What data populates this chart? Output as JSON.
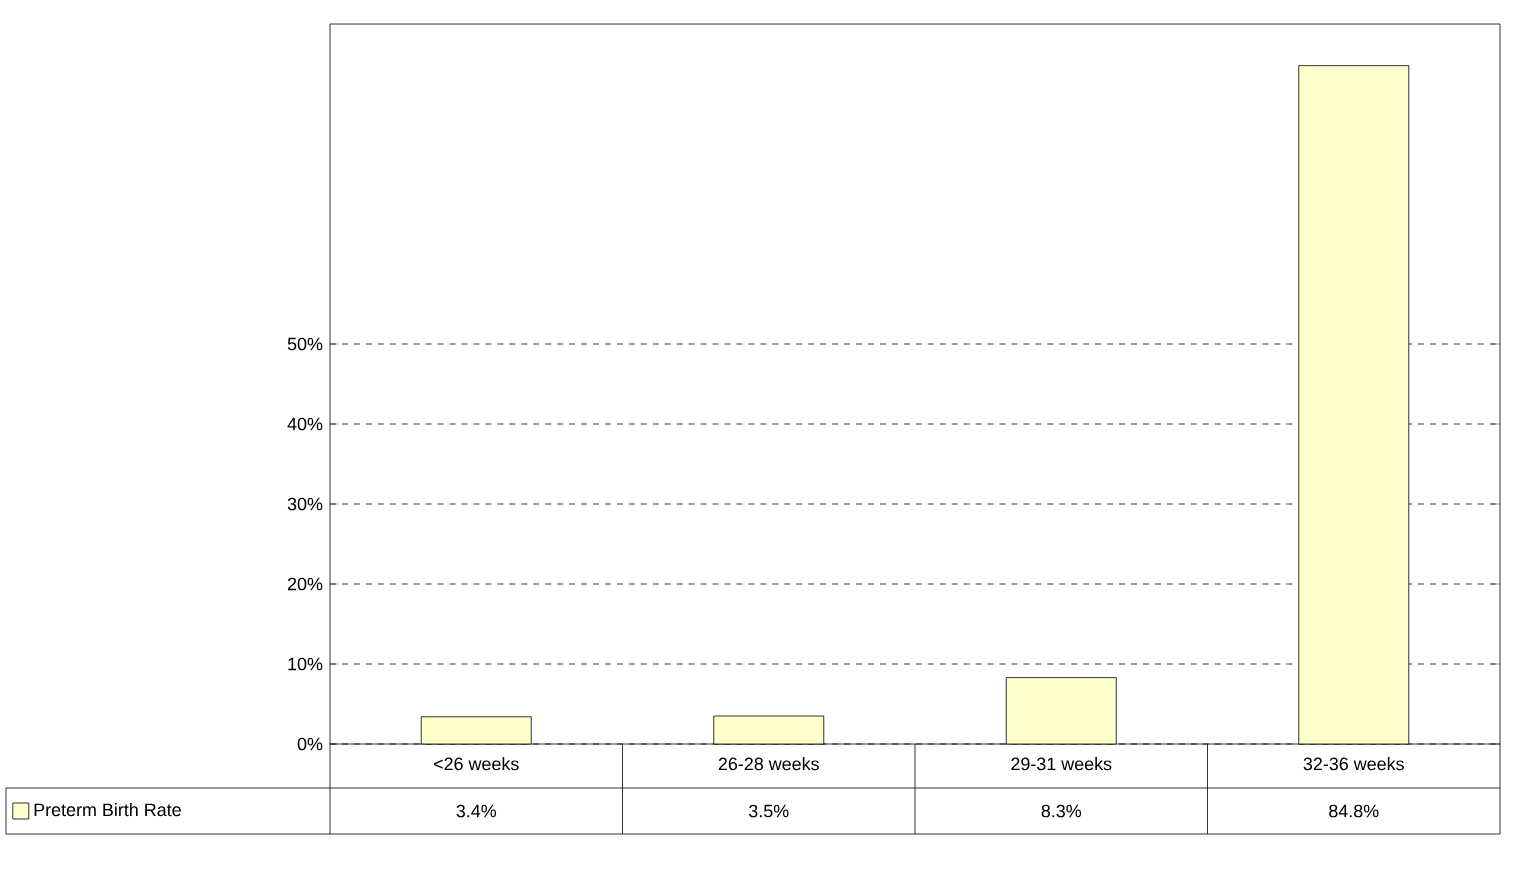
{
  "chart_data": {
    "type": "bar",
    "categories": [
      "<26 weeks",
      "26-28 weeks",
      "29-31 weeks",
      "32-36 weeks"
    ],
    "series": [
      {
        "name": "Preterm Birth Rate",
        "color": "#ffffcc",
        "values": [
          3.4,
          3.5,
          8.3,
          84.8
        ],
        "value_labels": [
          "3.4%",
          "3.5%",
          "8.3%",
          "84.8%"
        ]
      }
    ],
    "ylim": [
      0,
      90
    ],
    "yticks": [
      {
        "value": 0,
        "label": "0%"
      },
      {
        "value": 10,
        "label": "10%"
      },
      {
        "value": 20,
        "label": "20%"
      },
      {
        "value": 30,
        "label": "30%"
      },
      {
        "value": 40,
        "label": "40%"
      },
      {
        "value": 50,
        "label": "50%"
      }
    ],
    "grid": "y",
    "legend": "bottom left"
  }
}
